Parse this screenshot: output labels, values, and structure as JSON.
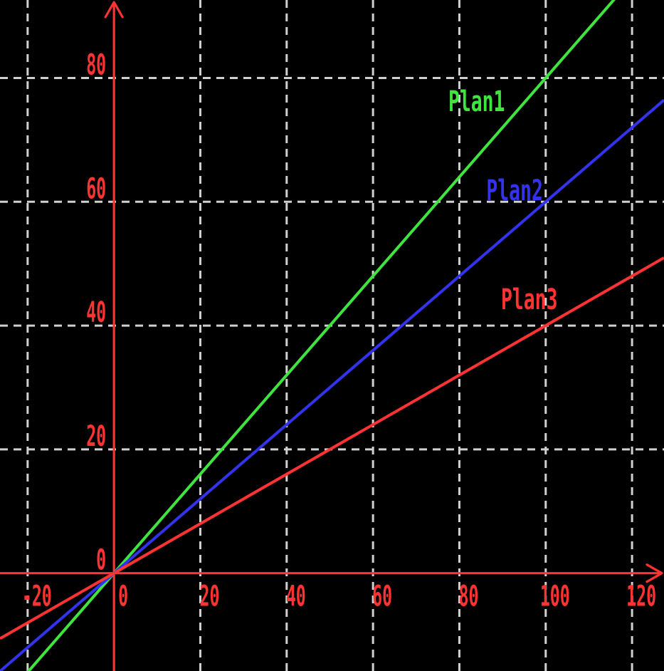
{
  "chart_data": {
    "type": "line",
    "title": "",
    "background_color": "#000000",
    "axis_color": "#ff3333",
    "grid": {
      "style": "dashed",
      "color": "#d0d0d0",
      "x_lines": [
        -20,
        20,
        40,
        60,
        80,
        100,
        120
      ],
      "y_lines": [
        20,
        40,
        60,
        80
      ]
    },
    "x_axis": {
      "range": [
        -26.4,
        127.4
      ],
      "ticks": [
        -20,
        0,
        20,
        40,
        60,
        80,
        100,
        120
      ],
      "tick_label_color": "#ff3333",
      "label": ""
    },
    "y_axis": {
      "range": [
        -15.8,
        92.6
      ],
      "ticks": [
        0,
        20,
        40,
        60,
        80
      ],
      "tick_label_color": "#ff3333",
      "label": ""
    },
    "legend_position": "inline-labels",
    "series": [
      {
        "name": "Plan1",
        "color": "#3fe43f",
        "equation": "y = 0.8x",
        "slope": 0.8,
        "intercept": 0,
        "points": [
          [
            0,
            0
          ],
          [
            20,
            16
          ],
          [
            40,
            32
          ],
          [
            60,
            48
          ],
          [
            80,
            64
          ],
          [
            100,
            80
          ],
          [
            120,
            96
          ]
        ],
        "label": {
          "text": "Plan1",
          "x": 84,
          "y": 76.5
        }
      },
      {
        "name": "Plan2",
        "color": "#3333ee",
        "equation": "y = 0.6x",
        "slope": 0.6,
        "intercept": 0,
        "points": [
          [
            0,
            0
          ],
          [
            20,
            12
          ],
          [
            40,
            24
          ],
          [
            60,
            36
          ],
          [
            80,
            48
          ],
          [
            100,
            60
          ],
          [
            120,
            72
          ]
        ],
        "label": {
          "text": "Plan2",
          "x": 92.8,
          "y": 62.1
        }
      },
      {
        "name": "Plan3",
        "color": "#ff3333",
        "equation": "y = 0.4x",
        "slope": 0.4,
        "intercept": 0,
        "points": [
          [
            0,
            0
          ],
          [
            20,
            8
          ],
          [
            40,
            16
          ],
          [
            60,
            24
          ],
          [
            80,
            32
          ],
          [
            100,
            40
          ],
          [
            120,
            48
          ]
        ],
        "label": {
          "text": "Plan3",
          "x": 96.2,
          "y": 44.5
        }
      }
    ]
  }
}
